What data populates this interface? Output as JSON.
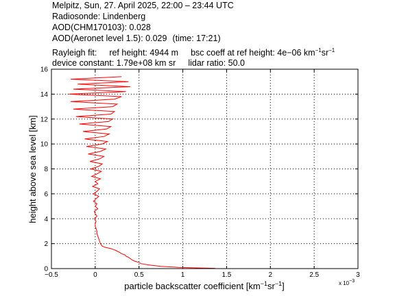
{
  "header": {
    "title": "Melpitz, Sun, 27. April 2025, 22:00 – 23:44 UTC",
    "radiosonde": "Radiosonde: Lindenberg",
    "aod_chm": "AOD(CHM170103): 0.028",
    "aod_aeronet": "AOD(Aeronet level 1.5): 0.029",
    "aod_aeronet_time": "(time: 17:21)",
    "rayleigh_fit": "Rayleigh fit:",
    "ref_height": "ref height: 4944 m",
    "bsc_coeff_prefix": "bsc coeff at ref height: 4e−06 km",
    "bsc_coeff_exp1": "−1",
    "bsc_coeff_mid": "sr",
    "bsc_coeff_exp2": "−1",
    "device_constant": "device constant: 1.79e+08 km sr",
    "lidar_ratio": "lidar ratio: 50.0"
  },
  "colors": {
    "profile_line": "#ff0000",
    "grid": "#000000",
    "axes": "#000000",
    "background": "#ffffff"
  },
  "chart_data": {
    "type": "line",
    "xlabel_prefix": "particle backscatter coefficient [km",
    "xlabel_exp1": "−1",
    "xlabel_mid": "sr",
    "xlabel_exp2": "−1",
    "xlabel_suffix": "]",
    "x_exponent_prefix": "x 10",
    "x_exponent": "−3",
    "ylabel": "height above sea level [km]",
    "xlim": [
      -0.5,
      3
    ],
    "ylim": [
      0,
      16
    ],
    "xticks": [
      -0.5,
      0,
      0.5,
      1,
      1.5,
      2,
      2.5,
      3
    ],
    "xtick_labels": [
      "−0.5",
      "0",
      "0.5",
      "1",
      "1.5",
      "2",
      "2.5",
      "3"
    ],
    "yticks": [
      0,
      2,
      4,
      6,
      8,
      10,
      12,
      14,
      16
    ],
    "ytick_labels": [
      "0",
      "2",
      "4",
      "6",
      "8",
      "10",
      "12",
      "14",
      "16"
    ],
    "grid": true,
    "series": [
      {
        "x": [
          1.37,
          1.2,
          0.95,
          0.75,
          0.6,
          0.52,
          0.5,
          0.45,
          0.42,
          0.4,
          0.38,
          0.35,
          0.34,
          0.3,
          0.28,
          0.25,
          0.22,
          0.2,
          0.18,
          0.15,
          0.12,
          0.1,
          0.08,
          0.07,
          0.06,
          0.05,
          0.04,
          0.03,
          0.02,
          0.02,
          0.01,
          0.0,
          0.0,
          0.01,
          -0.01,
          0.02,
          0.0,
          -0.01,
          0.03,
          0.0,
          0.02,
          -0.02,
          0.01,
          0.04,
          -0.02,
          0.02,
          0.05,
          -0.03,
          0.03,
          0.0,
          0.06,
          -0.04,
          0.02,
          0.07,
          -0.05,
          0.04,
          0.08,
          -0.06,
          0.05,
          0.1,
          -0.08,
          0.06,
          0.12,
          -0.1,
          0.08,
          0.14,
          -0.12,
          0.1,
          0.16,
          -0.14,
          0.13,
          0.18,
          -0.18,
          0.15,
          0.2,
          -0.22,
          0.18,
          0.22,
          -0.25,
          0.2,
          0.25,
          -0.28,
          0.22,
          0.3,
          -0.3,
          0.35,
          -0.25,
          0.4,
          -0.2,
          0.38,
          -0.28,
          0.3
        ],
        "y": [
          0.02,
          0.05,
          0.1,
          0.18,
          0.3,
          0.4,
          0.5,
          0.6,
          0.7,
          0.8,
          0.9,
          1.0,
          1.1,
          1.2,
          1.3,
          1.4,
          1.5,
          1.55,
          1.6,
          1.65,
          1.7,
          1.75,
          1.8,
          1.9,
          2.0,
          2.2,
          2.4,
          2.6,
          2.8,
          3.0,
          3.2,
          3.4,
          3.6,
          3.8,
          4.0,
          4.2,
          4.4,
          4.6,
          4.8,
          5.0,
          5.2,
          5.4,
          5.6,
          5.8,
          6.0,
          6.2,
          6.4,
          6.6,
          6.8,
          7.0,
          7.2,
          7.4,
          7.6,
          7.8,
          8.0,
          8.2,
          8.4,
          8.6,
          8.8,
          9.0,
          9.2,
          9.4,
          9.6,
          9.8,
          10.0,
          10.2,
          10.4,
          10.6,
          10.8,
          11.0,
          11.2,
          11.4,
          11.6,
          11.8,
          12.0,
          12.2,
          12.4,
          12.6,
          12.8,
          13.0,
          13.2,
          13.4,
          13.6,
          13.8,
          14.0,
          14.2,
          14.4,
          14.6,
          14.8,
          15.0,
          15.2,
          15.4
        ]
      }
    ]
  }
}
